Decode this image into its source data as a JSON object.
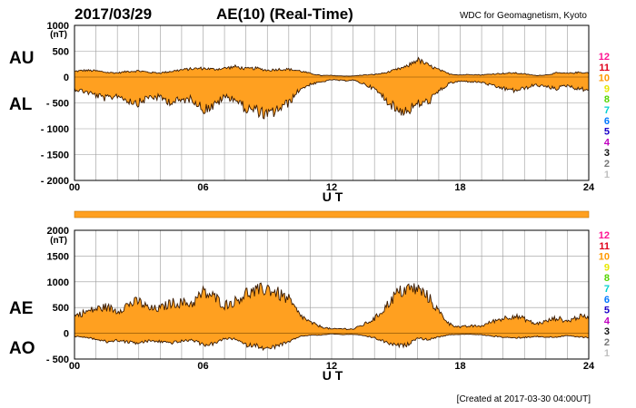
{
  "header": {
    "date": "2017/03/29",
    "title": "AE(10) (Real-Time)",
    "source": "WDC for Geomagnetism, Kyoto"
  },
  "footer": {
    "created": "[Created at 2017-03-30 04:00UT]"
  },
  "colors": {
    "fill": "#ffa020",
    "outline": "#3a1a00",
    "grid": "#9a9a9a",
    "axis": "#000000"
  },
  "station_legend": [
    {
      "label": "12",
      "color": "#ff1493"
    },
    {
      "label": "11",
      "color": "#e0001a"
    },
    {
      "label": "10",
      "color": "#ff9900"
    },
    {
      "label": "9",
      "color": "#e8e800"
    },
    {
      "label": "8",
      "color": "#55d400"
    },
    {
      "label": "7",
      "color": "#00d0d0"
    },
    {
      "label": "6",
      "color": "#0077ff"
    },
    {
      "label": "5",
      "color": "#1a00c8"
    },
    {
      "label": "4",
      "color": "#c000c0"
    },
    {
      "label": "3",
      "color": "#111111"
    },
    {
      "label": "2",
      "color": "#777777"
    },
    {
      "label": "1",
      "color": "#c0c0c0"
    }
  ],
  "chart_data": [
    {
      "type": "area",
      "panel": "top",
      "series_labels": [
        "AU",
        "AL"
      ],
      "unit": "(nT)",
      "xlabel": "U T",
      "xlim": [
        0,
        24
      ],
      "xticks": [
        "00",
        "06",
        "12",
        "18",
        "24"
      ],
      "ylim": [
        -2000,
        1000
      ],
      "yticks": [
        {
          "v": 1000,
          "label": "1000"
        },
        {
          "v": 500,
          "label": "500"
        },
        {
          "v": 0,
          "label": "0"
        },
        {
          "v": -500,
          "label": "- 500"
        },
        {
          "v": -1000,
          "label": "- 1000"
        },
        {
          "v": -1500,
          "label": "- 1500"
        },
        {
          "v": -2000,
          "label": "- 2000"
        }
      ],
      "grid": true,
      "x": [
        0,
        0.5,
        1,
        1.5,
        2,
        2.5,
        3,
        3.5,
        4,
        4.5,
        5,
        5.5,
        6,
        6.5,
        7,
        7.5,
        8,
        8.5,
        9,
        9.5,
        10,
        10.5,
        11,
        11.5,
        12,
        12.5,
        13,
        13.5,
        14,
        14.5,
        15,
        15.5,
        16,
        16.5,
        17,
        17.5,
        18,
        18.5,
        19,
        19.5,
        20,
        20.5,
        21,
        21.5,
        22,
        22.5,
        23,
        23.5,
        24
      ],
      "series": [
        {
          "name": "AU",
          "values": [
            110,
            130,
            120,
            90,
            80,
            110,
            120,
            90,
            80,
            110,
            140,
            160,
            170,
            150,
            170,
            200,
            160,
            170,
            130,
            150,
            150,
            120,
            70,
            30,
            30,
            20,
            20,
            40,
            50,
            80,
            140,
            200,
            340,
            230,
            140,
            60,
            40,
            50,
            40,
            60,
            70,
            80,
            60,
            30,
            40,
            80,
            70,
            90,
            80
          ]
        },
        {
          "name": "AL",
          "values": [
            -230,
            -280,
            -350,
            -420,
            -350,
            -450,
            -500,
            -380,
            -400,
            -480,
            -450,
            -420,
            -620,
            -560,
            -380,
            -420,
            -620,
            -640,
            -750,
            -620,
            -500,
            -240,
            -140,
            -100,
            -50,
            -70,
            -60,
            -130,
            -230,
            -420,
            -620,
            -660,
            -520,
            -480,
            -280,
            -120,
            -80,
            -90,
            -100,
            -170,
            -220,
            -260,
            -220,
            -150,
            -190,
            -220,
            -160,
            -230,
            -240
          ]
        }
      ]
    },
    {
      "type": "area",
      "panel": "bottom",
      "series_labels": [
        "AE",
        "AO"
      ],
      "unit": "(nT)",
      "xlabel": "U T",
      "xlim": [
        0,
        24
      ],
      "xticks": [
        "00",
        "06",
        "12",
        "18",
        "24"
      ],
      "ylim": [
        -500,
        2000
      ],
      "yticks": [
        {
          "v": 2000,
          "label": "2000"
        },
        {
          "v": 1500,
          "label": "1500"
        },
        {
          "v": 1000,
          "label": "1000"
        },
        {
          "v": 500,
          "label": "500"
        },
        {
          "v": 0,
          "label": "0"
        },
        {
          "v": -500,
          "label": "- 500"
        }
      ],
      "grid": true,
      "x": [
        0,
        0.5,
        1,
        1.5,
        2,
        2.5,
        3,
        3.5,
        4,
        4.5,
        5,
        5.5,
        6,
        6.5,
        7,
        7.5,
        8,
        8.5,
        9,
        9.5,
        10,
        10.5,
        11,
        11.5,
        12,
        12.5,
        13,
        13.5,
        14,
        14.5,
        15,
        15.5,
        16,
        16.5,
        17,
        17.5,
        18,
        18.5,
        19,
        19.5,
        20,
        20.5,
        21,
        21.5,
        22,
        22.5,
        23,
        23.5,
        24
      ],
      "series": [
        {
          "name": "AE",
          "values": [
            340,
            410,
            470,
            510,
            430,
            560,
            620,
            470,
            480,
            590,
            590,
            580,
            790,
            710,
            550,
            620,
            780,
            810,
            880,
            770,
            650,
            360,
            210,
            130,
            80,
            90,
            80,
            170,
            280,
            500,
            760,
            860,
            860,
            710,
            420,
            180,
            120,
            140,
            140,
            230,
            290,
            340,
            280,
            180,
            230,
            300,
            230,
            320,
            320
          ]
        },
        {
          "name": "AO",
          "values": [
            -60,
            -75,
            -115,
            -165,
            -135,
            -170,
            -190,
            -145,
            -160,
            -185,
            -155,
            -130,
            -225,
            -205,
            -105,
            -110,
            -230,
            -235,
            -310,
            -235,
            -175,
            -60,
            -35,
            -35,
            -10,
            -25,
            -20,
            -45,
            -90,
            -170,
            -240,
            -230,
            -90,
            -125,
            -70,
            -30,
            -20,
            -20,
            -30,
            -55,
            -75,
            -90,
            -80,
            -60,
            -75,
            -70,
            -45,
            -70,
            -80
          ]
        }
      ]
    }
  ]
}
